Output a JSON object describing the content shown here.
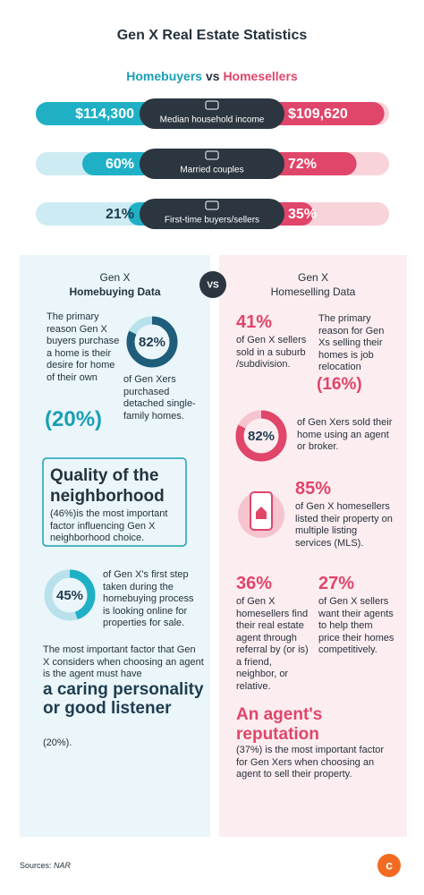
{
  "header": {
    "title": "Gen X Real Estate Statistics",
    "subtitle_buyers": "Homebuyers",
    "subtitle_vs": "vs",
    "subtitle_sellers": "Homesellers"
  },
  "comparisons": [
    {
      "label": "Median household income",
      "buyers": {
        "value": 114300,
        "label": "$114,300"
      },
      "sellers": {
        "value": 109620,
        "label": "$109,620"
      }
    },
    {
      "label": "Married couples",
      "buyers": {
        "value": 60,
        "label": "60%"
      },
      "sellers": {
        "value": 72,
        "label": "72%"
      }
    },
    {
      "label": "First-time buyers/sellers",
      "buyers": {
        "value": 21,
        "label": "21%"
      },
      "sellers": {
        "value": 35,
        "label": "35%"
      }
    }
  ],
  "vs": "VS",
  "homebuying": {
    "heading": "Gen X",
    "title": "Homebuying Data",
    "reason": {
      "text": "The primary reason Gen X buyers purchase a home is their desire for home of their own",
      "stat": "(20%)"
    },
    "single_family": {
      "value": 82,
      "label": "82%",
      "text": "of Gen Xers purchased detached single-family homes."
    },
    "quality": {
      "title": "Quality of the neighborhood",
      "text": "(46%)is the most important factor influencing Gen X neighborhood choice."
    },
    "online": {
      "value": 45,
      "label": "45%",
      "text": "of Gen X's first step taken during the homebuying process is looking online for properties for sale."
    },
    "agent": {
      "intro": "The most important factor that Gen X considers when choosing an agent is the agent must have",
      "highlight": "a caring personality or good listener",
      "stat": "(20%)."
    }
  },
  "homeselling": {
    "heading": "Gen X",
    "title": "Homeselling Data",
    "suburb": {
      "stat": "41%",
      "text": "of Gen X sellers sold in a suburb /subdivision."
    },
    "reason": {
      "text": "The primary reason for Gen Xs selling their homes is job relocation",
      "stat": "(16%)"
    },
    "agent_use": {
      "value": 82,
      "label": "82%",
      "text": "of Gen Xers sold their home using an agent or broker."
    },
    "mls": {
      "stat": "85%",
      "text": "of Gen X homesellers listed their property on multiple listing services (MLS)."
    },
    "referral": {
      "stat": "36%",
      "text": "of Gen X homesellers find their real estate agent through referral by (or is) a friend, neighbor, or relative."
    },
    "pricing": {
      "stat": "27%",
      "text": "of Gen X sellers want their agents to help them price their homes competitively."
    },
    "reputation": {
      "title": "An agent's reputation",
      "text": "(37%) is the most important factor for Gen Xers when choosing an agent to sell their property."
    }
  },
  "footer": {
    "sources_label": "Sources:",
    "sources": "NAR"
  }
}
